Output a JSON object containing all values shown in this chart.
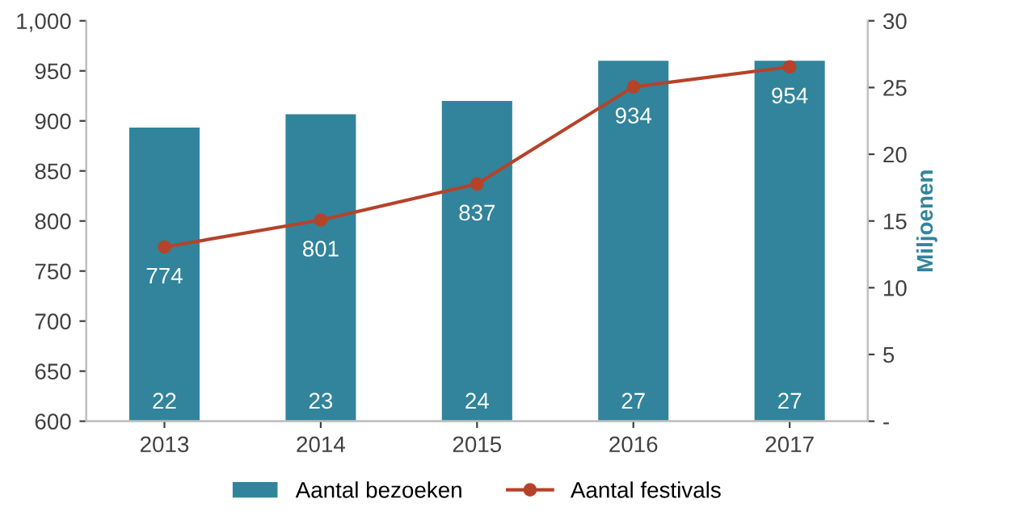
{
  "chart_data": {
    "type": "bar",
    "categories": [
      "2013",
      "2014",
      "2015",
      "2016",
      "2017"
    ],
    "series": [
      {
        "name": "Aantal bezoeken",
        "axis": "y2",
        "color": "#31849b",
        "values": [
          22,
          23,
          24,
          27,
          27
        ]
      },
      {
        "name": "Aantal festivals",
        "type": "line",
        "color": "#b5432a",
        "values": [
          774,
          801,
          837,
          934,
          954
        ]
      }
    ],
    "ylim": [
      600,
      1000
    ],
    "yticks": [
      600,
      650,
      700,
      750,
      800,
      850,
      900,
      950,
      {
        "value": 1000,
        "label": "1,000"
      }
    ],
    "y2lim": [
      0,
      30
    ],
    "y2ticks": [
      {
        "value": 0,
        "label": "-"
      },
      5,
      10,
      15,
      20,
      25,
      30
    ],
    "y2label": "Miljoenen",
    "data_labels": true,
    "marker": "circle",
    "legend": "bottom",
    "grid": false
  }
}
